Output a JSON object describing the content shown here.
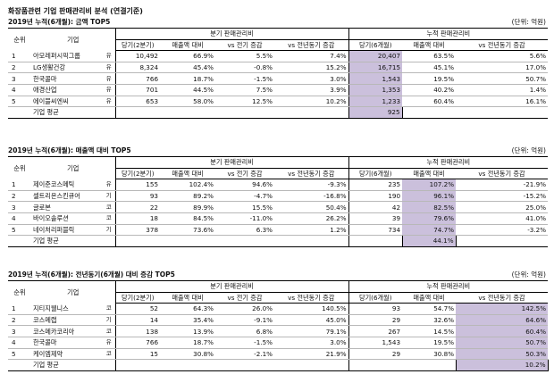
{
  "page_title": "화장품관련 기업 판매관리비 분석 (연결기준)",
  "headers": {
    "rank": "순위",
    "company": "기업",
    "group_quarter": "분기 판매관리비",
    "group_cumulative": "누적 판매관리비",
    "current": "당기(2분기)",
    "current_cum": "당기(6개월)",
    "ratio": "매출액 대비",
    "qoq": "vs 전기 증감",
    "yoy": "vs 전년동기 증감",
    "avg_label": "기업 평균"
  },
  "sections": [
    {
      "title": "2019년 누적(6개월): 금액 TOP5",
      "unit": "(단위: 억원)",
      "highlight_col": 4,
      "avg_col": 4,
      "avg_value": "925",
      "rows": [
        {
          "rank": "1",
          "name": "아모레퍼시픽그룹",
          "code": "유",
          "q_cur": "10,492",
          "q_ratio": "66.9%",
          "q_qoq": "5.5%",
          "q_yoy": "7.4%",
          "c_cur": "20,407",
          "c_ratio": "63.5%",
          "c_yoy": "5.6%"
        },
        {
          "rank": "2",
          "name": "LG생활건강",
          "code": "유",
          "q_cur": "8,324",
          "q_ratio": "45.4%",
          "q_qoq": "-0.8%",
          "q_yoy": "15.2%",
          "c_cur": "16,715",
          "c_ratio": "45.1%",
          "c_yoy": "17.0%"
        },
        {
          "rank": "3",
          "name": "한국콜마",
          "code": "유",
          "q_cur": "766",
          "q_ratio": "18.7%",
          "q_qoq": "-1.5%",
          "q_yoy": "3.0%",
          "c_cur": "1,543",
          "c_ratio": "19.5%",
          "c_yoy": "50.7%"
        },
        {
          "rank": "4",
          "name": "애경산업",
          "code": "유",
          "q_cur": "701",
          "q_ratio": "44.5%",
          "q_qoq": "7.5%",
          "q_yoy": "3.9%",
          "c_cur": "1,353",
          "c_ratio": "40.2%",
          "c_yoy": "1.4%"
        },
        {
          "rank": "5",
          "name": "에이블씨엔씨",
          "code": "유",
          "q_cur": "653",
          "q_ratio": "58.0%",
          "q_qoq": "12.5%",
          "q_yoy": "10.2%",
          "c_cur": "1,233",
          "c_ratio": "60.4%",
          "c_yoy": "16.1%"
        }
      ]
    },
    {
      "title": "2019년 누적(6개월): 매출액 대비 TOP5",
      "unit": "(단위: 억원)",
      "highlight_col": 5,
      "avg_col": 5,
      "avg_value": "44.1%",
      "rows": [
        {
          "rank": "1",
          "name": "제이준코스메틱",
          "code": "유",
          "q_cur": "155",
          "q_ratio": "102.4%",
          "q_qoq": "94.6%",
          "q_yoy": "-9.3%",
          "c_cur": "235",
          "c_ratio": "107.2%",
          "c_yoy": "-21.9%"
        },
        {
          "rank": "2",
          "name": "셀트리온스킨큐어",
          "code": "기",
          "q_cur": "93",
          "q_ratio": "89.2%",
          "q_qoq": "-4.7%",
          "q_yoy": "-16.8%",
          "c_cur": "190",
          "c_ratio": "96.1%",
          "c_yoy": "-15.2%"
        },
        {
          "rank": "3",
          "name": "글로본",
          "code": "코",
          "q_cur": "22",
          "q_ratio": "89.9%",
          "q_qoq": "15.5%",
          "q_yoy": "50.4%",
          "c_cur": "42",
          "c_ratio": "82.5%",
          "c_yoy": "25.0%"
        },
        {
          "rank": "4",
          "name": "바이오솔루션",
          "code": "코",
          "q_cur": "18",
          "q_ratio": "84.5%",
          "q_qoq": "-11.0%",
          "q_yoy": "26.2%",
          "c_cur": "39",
          "c_ratio": "79.6%",
          "c_yoy": "41.0%"
        },
        {
          "rank": "5",
          "name": "네이처리퍼블릭",
          "code": "기",
          "q_cur": "378",
          "q_ratio": "73.6%",
          "q_qoq": "6.3%",
          "q_yoy": "1.2%",
          "c_cur": "734",
          "c_ratio": "74.7%",
          "c_yoy": "-3.2%"
        }
      ]
    },
    {
      "title": "2019년 누적(6개월): 전년동기(6개월) 대비 증감 TOP5",
      "unit": "(단위: 억원)",
      "highlight_col": 6,
      "avg_col": 6,
      "avg_value": "10.2%",
      "rows": [
        {
          "rank": "1",
          "name": "지티지웰니스",
          "code": "코",
          "q_cur": "52",
          "q_ratio": "64.3%",
          "q_qoq": "26.0%",
          "q_yoy": "140.5%",
          "c_cur": "93",
          "c_ratio": "54.7%",
          "c_yoy": "142.5%"
        },
        {
          "rank": "2",
          "name": "코스메랩",
          "code": "기",
          "q_cur": "14",
          "q_ratio": "35.4%",
          "q_qoq": "-9.1%",
          "q_yoy": "45.0%",
          "c_cur": "29",
          "c_ratio": "32.6%",
          "c_yoy": "64.6%"
        },
        {
          "rank": "3",
          "name": "코스메카코리아",
          "code": "코",
          "q_cur": "138",
          "q_ratio": "13.9%",
          "q_qoq": "6.8%",
          "q_yoy": "79.1%",
          "c_cur": "267",
          "c_ratio": "14.5%",
          "c_yoy": "60.4%"
        },
        {
          "rank": "4",
          "name": "한국콜마",
          "code": "유",
          "q_cur": "766",
          "q_ratio": "18.7%",
          "q_qoq": "-1.5%",
          "q_yoy": "3.0%",
          "c_cur": "1,543",
          "c_ratio": "19.5%",
          "c_yoy": "50.7%"
        },
        {
          "rank": "5",
          "name": "케이엠제약",
          "code": "코",
          "q_cur": "15",
          "q_ratio": "30.8%",
          "q_qoq": "-2.1%",
          "q_yoy": "21.9%",
          "c_cur": "29",
          "c_ratio": "30.8%",
          "c_yoy": "50.3%"
        }
      ]
    }
  ]
}
